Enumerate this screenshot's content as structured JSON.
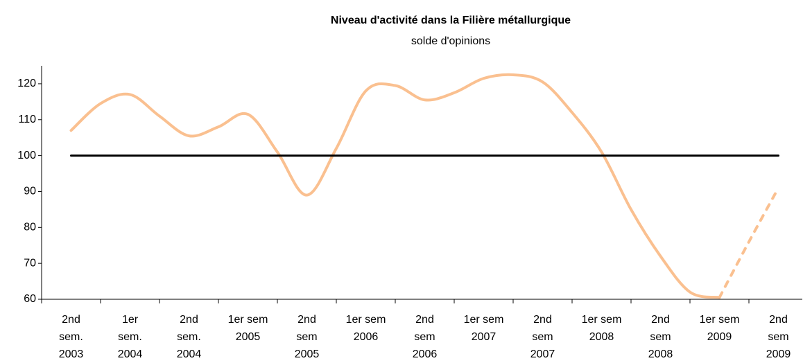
{
  "chart_data": {
    "type": "line",
    "title": "Niveau d'activité dans la Filière métallurgique",
    "subtitle": "solde d'opinions",
    "categories": [
      "2nd\nsem.\n2003",
      null,
      "1er\nsem.\n2004",
      null,
      "2nd\nsem.\n2004",
      null,
      "1er sem\n2005",
      null,
      "2nd\nsem\n2005",
      null,
      "1er sem\n2006",
      null,
      "2nd\nsem\n2006",
      null,
      "1er sem\n2007",
      null,
      "2nd\nsem\n2007",
      null,
      "1er sem\n2008",
      null,
      "2nd\nsem\n2008",
      null,
      "1er sem\n2009",
      null,
      "2nd\nsem\n2009"
    ],
    "series": [
      {
        "color": "#fac090",
        "dash": false,
        "values": [
          107,
          114.5,
          117,
          111,
          105.5,
          108,
          111.5,
          101,
          89,
          102,
          118,
          119.5,
          115.5,
          117.5,
          121.5,
          122.5,
          120.5,
          112,
          101,
          85,
          72,
          62,
          60.5,
          null,
          null
        ]
      },
      {
        "color": "#fac090",
        "dash": true,
        "values": [
          null,
          null,
          null,
          null,
          null,
          null,
          null,
          null,
          null,
          null,
          null,
          null,
          null,
          null,
          null,
          null,
          null,
          null,
          null,
          null,
          null,
          null,
          60.5,
          76,
          91
        ]
      },
      {
        "color": "#000000",
        "dash": false,
        "values": [
          100,
          100,
          100,
          100,
          100,
          100,
          100,
          100,
          100,
          100,
          100,
          100,
          100,
          100,
          100,
          100,
          100,
          100,
          100,
          100,
          100,
          100,
          100,
          100,
          100
        ]
      }
    ],
    "ylim": [
      60,
      125
    ],
    "yticks": [
      60,
      70,
      80,
      90,
      100,
      110,
      120
    ],
    "grid": false
  }
}
